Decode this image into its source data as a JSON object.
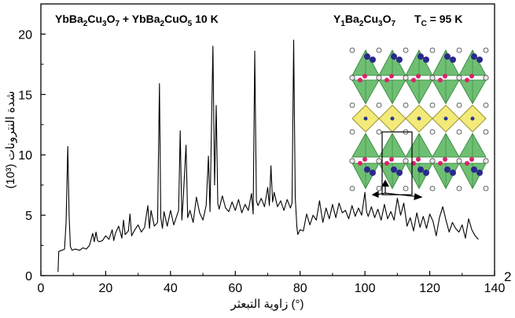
{
  "chart_data": {
    "type": "line",
    "xlabel": "زاوية التبعثر (°)",
    "ylabel": "شدة النترونات (10³)",
    "xlim": [
      0,
      140
    ],
    "ylim": [
      0,
      22.5
    ],
    "x_ticks": [
      0,
      20,
      40,
      60,
      80,
      100,
      120,
      140
    ],
    "y_ticks": [
      0,
      5,
      10,
      15,
      20
    ],
    "x_tick_labels": [
      "0",
      "20",
      "40",
      "60",
      "80",
      "100",
      "120",
      "140"
    ],
    "y_tick_labels": [
      "0",
      "5",
      "10",
      "15",
      "20"
    ],
    "corner_label": "2",
    "grid": false,
    "annotations": {
      "sample": {
        "parts": [
          [
            "Yb",
            ""
          ],
          [
            "Ba",
            "2"
          ],
          [
            "Cu",
            "3"
          ],
          [
            "O",
            "7"
          ],
          [
            " + Yb",
            ""
          ],
          [
            "Ba",
            "2"
          ],
          [
            "Cu",
            ""
          ],
          [
            "O",
            "5"
          ],
          [
            "  10 K",
            ""
          ]
        ]
      },
      "compound": {
        "parts": [
          [
            "Y",
            "1"
          ],
          [
            "Ba",
            "2"
          ],
          [
            "Cu",
            "3"
          ],
          [
            "O",
            "7"
          ]
        ]
      },
      "tc": {
        "parts": [
          [
            "T",
            "C"
          ],
          [
            " = 95 K",
            ""
          ]
        ]
      }
    },
    "series": [
      {
        "x": [
          5.3,
          5.5,
          6.5,
          7.3,
          7.8,
          8.3,
          8.7,
          9.1,
          9.6,
          10.5,
          12,
          13,
          14,
          15,
          16,
          16.5,
          17,
          17.5,
          18,
          19,
          20,
          21,
          22,
          22.5,
          23,
          24,
          25,
          25.5,
          26,
          27,
          27.5,
          28,
          29,
          30,
          31,
          32,
          33,
          33.5,
          34,
          35,
          36,
          36.6,
          37,
          37.5,
          38,
          39,
          40,
          41,
          42,
          42.5,
          43,
          43.5,
          44,
          44.8,
          45.3,
          46,
          47,
          48,
          49,
          50,
          51,
          51.7,
          52.2,
          52.7,
          53.1,
          53.6,
          54.1,
          54.6,
          55,
          56,
          57,
          58,
          59,
          60,
          61,
          62,
          63,
          64,
          65,
          65.5,
          66,
          66.5,
          67,
          68,
          69,
          70,
          70.5,
          71,
          71.5,
          72,
          73,
          74,
          75,
          76,
          77,
          77.5,
          78,
          78.5,
          79,
          79.3,
          80,
          81,
          82,
          83,
          84,
          85,
          86,
          87,
          88,
          89,
          90,
          91,
          92,
          93,
          94,
          95,
          96,
          97,
          98,
          99,
          100,
          100.5,
          101,
          102,
          103,
          104,
          105,
          106,
          107,
          108,
          109,
          110,
          111,
          112,
          113,
          114,
          115,
          116,
          117,
          118,
          119,
          120,
          121,
          122,
          123,
          124,
          125,
          126,
          127,
          128,
          129,
          130,
          131,
          132,
          133,
          134,
          135
        ],
        "values": [
          0.3,
          2.0,
          2.1,
          2.2,
          4.5,
          10.7,
          5.0,
          2.4,
          2.1,
          2.2,
          2.1,
          2.3,
          2.2,
          2.5,
          3.5,
          2.8,
          3.6,
          2.9,
          2.8,
          2.9,
          3.3,
          3.0,
          3.8,
          2.9,
          3.5,
          4.1,
          3.1,
          4.6,
          3.4,
          3.7,
          5.1,
          3.3,
          3.8,
          4.2,
          3.6,
          4.0,
          5.8,
          3.9,
          5.4,
          4.1,
          4.4,
          15.9,
          4.8,
          3.9,
          5.3,
          4.1,
          5.4,
          4.2,
          5.0,
          5.4,
          12.0,
          4.6,
          6.7,
          10.8,
          4.8,
          5.4,
          4.4,
          6.5,
          5.2,
          4.6,
          5.8,
          9.9,
          5.3,
          13.2,
          19.0,
          7.5,
          14.1,
          6.0,
          5.5,
          6.6,
          5.6,
          5.3,
          6.1,
          5.4,
          6.3,
          5.2,
          5.9,
          5.4,
          6.8,
          5.1,
          18.6,
          6.2,
          5.8,
          6.4,
          5.7,
          7.3,
          5.8,
          9.1,
          6.1,
          6.9,
          5.7,
          6.2,
          5.4,
          6.3,
          5.6,
          6.0,
          19.5,
          6.5,
          4.0,
          3.4,
          3.8,
          3.7,
          5.1,
          4.2,
          5.0,
          4.6,
          6.2,
          4.4,
          5.6,
          4.7,
          5.9,
          4.8,
          6.0,
          5.2,
          5.4,
          4.7,
          5.8,
          4.9,
          5.6,
          5.0,
          6.9,
          5.3,
          4.9,
          5.7,
          4.8,
          5.5,
          4.6,
          5.9,
          4.7,
          5.3,
          4.6,
          6.4,
          5.0,
          6.0,
          4.1,
          4.8,
          3.7,
          5.2,
          4.0,
          4.9,
          3.9,
          5.1,
          4.5,
          3.3,
          4.8,
          5.7,
          4.6,
          3.6,
          4.4,
          3.9,
          3.6,
          4.2,
          3.1,
          4.7,
          3.8,
          3.3,
          3.0
        ]
      }
    ]
  }
}
